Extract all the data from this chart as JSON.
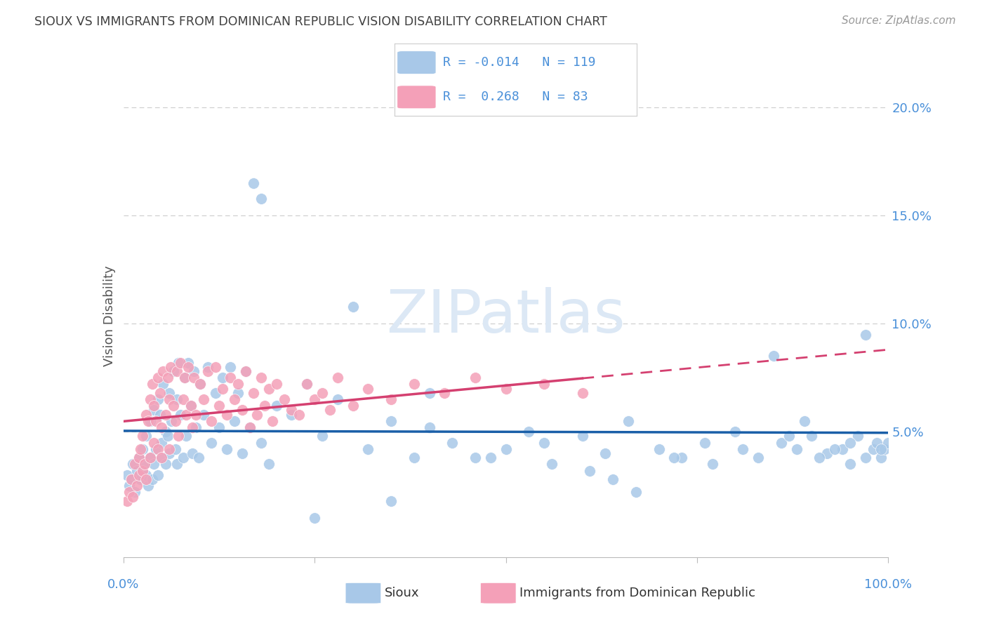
{
  "title": "SIOUX VS IMMIGRANTS FROM DOMINICAN REPUBLIC VISION DISABILITY CORRELATION CHART",
  "source": "Source: ZipAtlas.com",
  "ylabel": "Vision Disability",
  "xlim": [
    0.0,
    1.0
  ],
  "ylim": [
    -0.008,
    0.215
  ],
  "sioux_R": -0.014,
  "sioux_N": 119,
  "dr_R": 0.268,
  "dr_N": 83,
  "sioux_color": "#a8c8e8",
  "dr_color": "#f4a0b8",
  "sioux_line_color": "#1a5fa8",
  "dr_line_color": "#d44070",
  "background_color": "#ffffff",
  "grid_color": "#cccccc",
  "title_color": "#404040",
  "axis_label_color": "#4a90d9",
  "legend_text_color": "#4a90d9",
  "watermark_color": "#dce8f5",
  "sioux_x": [
    0.005,
    0.008,
    0.01,
    0.012,
    0.015,
    0.018,
    0.02,
    0.022,
    0.025,
    0.028,
    0.03,
    0.03,
    0.032,
    0.035,
    0.035,
    0.038,
    0.04,
    0.04,
    0.042,
    0.045,
    0.045,
    0.048,
    0.05,
    0.05,
    0.052,
    0.055,
    0.055,
    0.058,
    0.06,
    0.06,
    0.063,
    0.065,
    0.068,
    0.07,
    0.07,
    0.072,
    0.075,
    0.078,
    0.08,
    0.082,
    0.085,
    0.088,
    0.09,
    0.092,
    0.095,
    0.098,
    0.1,
    0.105,
    0.11,
    0.115,
    0.12,
    0.125,
    0.13,
    0.135,
    0.14,
    0.145,
    0.15,
    0.155,
    0.16,
    0.165,
    0.17,
    0.18,
    0.19,
    0.2,
    0.18,
    0.22,
    0.24,
    0.26,
    0.28,
    0.3,
    0.32,
    0.35,
    0.38,
    0.4,
    0.43,
    0.46,
    0.5,
    0.53,
    0.56,
    0.6,
    0.63,
    0.66,
    0.7,
    0.73,
    0.76,
    0.8,
    0.83,
    0.86,
    0.88,
    0.9,
    0.92,
    0.94,
    0.95,
    0.96,
    0.97,
    0.98,
    0.985,
    0.99,
    0.995,
    1.0,
    0.4,
    0.48,
    0.55,
    0.61,
    0.64,
    0.67,
    0.72,
    0.77,
    0.81,
    0.85,
    0.87,
    0.89,
    0.91,
    0.93,
    0.95,
    0.97,
    0.99,
    0.25,
    0.35
  ],
  "sioux_y": [
    0.03,
    0.025,
    0.028,
    0.035,
    0.022,
    0.032,
    0.038,
    0.028,
    0.042,
    0.035,
    0.048,
    0.03,
    0.025,
    0.038,
    0.055,
    0.028,
    0.06,
    0.035,
    0.042,
    0.065,
    0.03,
    0.058,
    0.045,
    0.038,
    0.072,
    0.05,
    0.035,
    0.048,
    0.068,
    0.04,
    0.055,
    0.078,
    0.042,
    0.065,
    0.035,
    0.082,
    0.058,
    0.038,
    0.075,
    0.048,
    0.082,
    0.062,
    0.04,
    0.078,
    0.052,
    0.038,
    0.072,
    0.058,
    0.08,
    0.045,
    0.068,
    0.052,
    0.075,
    0.042,
    0.08,
    0.055,
    0.068,
    0.04,
    0.078,
    0.052,
    0.165,
    0.045,
    0.035,
    0.062,
    0.158,
    0.058,
    0.072,
    0.048,
    0.065,
    0.108,
    0.042,
    0.055,
    0.038,
    0.068,
    0.045,
    0.038,
    0.042,
    0.05,
    0.035,
    0.048,
    0.04,
    0.055,
    0.042,
    0.038,
    0.045,
    0.05,
    0.038,
    0.045,
    0.042,
    0.048,
    0.04,
    0.042,
    0.035,
    0.048,
    0.038,
    0.042,
    0.045,
    0.038,
    0.042,
    0.045,
    0.052,
    0.038,
    0.045,
    0.032,
    0.028,
    0.022,
    0.038,
    0.035,
    0.042,
    0.085,
    0.048,
    0.055,
    0.038,
    0.042,
    0.045,
    0.095,
    0.042,
    0.01,
    0.018
  ],
  "dr_x": [
    0.005,
    0.008,
    0.01,
    0.012,
    0.015,
    0.018,
    0.02,
    0.02,
    0.022,
    0.025,
    0.025,
    0.028,
    0.03,
    0.03,
    0.032,
    0.035,
    0.035,
    0.038,
    0.04,
    0.04,
    0.042,
    0.045,
    0.045,
    0.048,
    0.05,
    0.05,
    0.052,
    0.055,
    0.058,
    0.06,
    0.06,
    0.062,
    0.065,
    0.068,
    0.07,
    0.072,
    0.075,
    0.078,
    0.08,
    0.082,
    0.085,
    0.088,
    0.09,
    0.092,
    0.095,
    0.1,
    0.105,
    0.11,
    0.115,
    0.12,
    0.125,
    0.13,
    0.135,
    0.14,
    0.145,
    0.15,
    0.155,
    0.16,
    0.165,
    0.17,
    0.175,
    0.18,
    0.185,
    0.19,
    0.195,
    0.2,
    0.21,
    0.22,
    0.23,
    0.24,
    0.25,
    0.26,
    0.27,
    0.28,
    0.3,
    0.32,
    0.35,
    0.38,
    0.42,
    0.46,
    0.5,
    0.55,
    0.6
  ],
  "dr_y": [
    0.018,
    0.022,
    0.028,
    0.02,
    0.035,
    0.025,
    0.038,
    0.03,
    0.042,
    0.032,
    0.048,
    0.035,
    0.058,
    0.028,
    0.055,
    0.065,
    0.038,
    0.072,
    0.045,
    0.062,
    0.055,
    0.075,
    0.042,
    0.068,
    0.052,
    0.038,
    0.078,
    0.058,
    0.075,
    0.065,
    0.042,
    0.08,
    0.062,
    0.055,
    0.078,
    0.048,
    0.082,
    0.065,
    0.075,
    0.058,
    0.08,
    0.062,
    0.052,
    0.075,
    0.058,
    0.072,
    0.065,
    0.078,
    0.055,
    0.08,
    0.062,
    0.07,
    0.058,
    0.075,
    0.065,
    0.072,
    0.06,
    0.078,
    0.052,
    0.068,
    0.058,
    0.075,
    0.062,
    0.07,
    0.055,
    0.072,
    0.065,
    0.06,
    0.058,
    0.072,
    0.065,
    0.068,
    0.06,
    0.075,
    0.062,
    0.07,
    0.065,
    0.072,
    0.068,
    0.075,
    0.07,
    0.072,
    0.068
  ]
}
